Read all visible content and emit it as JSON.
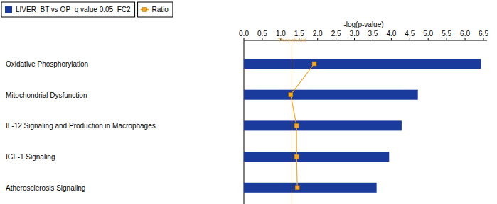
{
  "chart_data": {
    "type": "bar",
    "orientation": "horizontal",
    "x_label": "-log(p-value)",
    "categories": [
      "Oxidative Phosphorylation",
      "Mitochondrial Dysfunction",
      "IL-12 Signaling and Production in Macrophages",
      "IGF-1 Signaling",
      "Atherosclerosis Signaling"
    ],
    "series": [
      {
        "name": "LIVER_BT vs OP_q value 0.05_FC2",
        "type": "bar",
        "color": "#1a3a9c",
        "values": [
          6.43,
          4.72,
          4.28,
          3.94,
          3.6
        ]
      },
      {
        "name": "Ratio",
        "type": "line",
        "color": "#f0a830",
        "marker": "square",
        "values": [
          1.91,
          1.27,
          1.43,
          1.43,
          1.45
        ]
      }
    ],
    "xlim": [
      0,
      6.5
    ],
    "xticks": [
      {
        "value": 0,
        "label": "0.0"
      },
      0.5,
      {
        "value": 1,
        "label": "1.0"
      },
      1.5,
      {
        "value": 2,
        "label": "2.0"
      },
      2.5,
      {
        "value": 3,
        "label": "3.0"
      },
      3.5,
      {
        "value": 4,
        "label": "4.0"
      },
      4.5,
      {
        "value": 5,
        "label": "5.0"
      },
      5.5,
      {
        "value": 6,
        "label": "6.0"
      },
      6.5
    ],
    "annotations": [
      {
        "text": "Threshold",
        "value": 1.3
      }
    ],
    "legend": "top-left",
    "grid": false
  }
}
